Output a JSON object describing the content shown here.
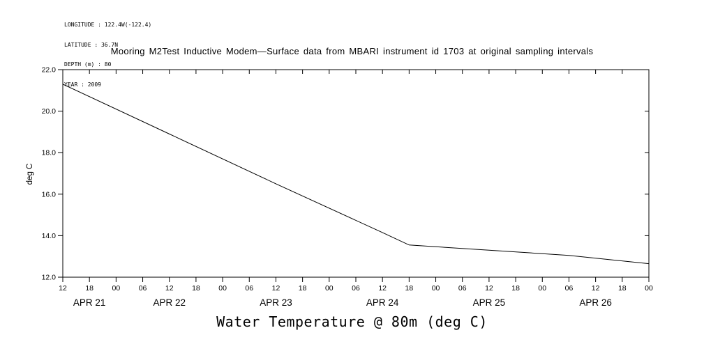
{
  "meta": {
    "lines": [
      "LONGITUDE : 122.4W(-122.4)",
      "LATITUDE : 36.7N",
      "DEPTH (m) : 80",
      "YEAR : 2009"
    ]
  },
  "chart_data": {
    "type": "line",
    "title": "Mooring M2Test Inductive Modem—Surface data from MBARI instrument id 1703 at original sampling intervals",
    "bottom_title": "Water Temperature @ 80m (deg C)",
    "ylabel": "deg C",
    "xlabel": "",
    "ylim": [
      12.0,
      22.0
    ],
    "y_ticks": [
      12.0,
      14.0,
      16.0,
      18.0,
      20.0,
      22.0
    ],
    "y_tick_labels": [
      "12.0",
      "14.0",
      "16.0",
      "18.0",
      "20.0",
      "22.0"
    ],
    "x_hours_range": [
      0,
      132
    ],
    "x_tick_interval_hours": 6,
    "x_tick_labels": [
      "12",
      "18",
      "00",
      "06",
      "12",
      "18",
      "00",
      "06",
      "12",
      "18",
      "00",
      "06",
      "12",
      "18",
      "00",
      "06",
      "12",
      "18",
      "00",
      "06",
      "12",
      "18",
      "00"
    ],
    "date_labels": [
      {
        "label": "APR 21",
        "center_hour": 6
      },
      {
        "label": "APR 22",
        "center_hour": 24
      },
      {
        "label": "APR 23",
        "center_hour": 48
      },
      {
        "label": "APR 24",
        "center_hour": 72
      },
      {
        "label": "APR 25",
        "center_hour": 96
      },
      {
        "label": "APR 26",
        "center_hour": 120
      }
    ],
    "grid": false,
    "legend": "none",
    "line_color": "#000000",
    "background": "#ffffff",
    "series": [
      {
        "name": "water_temperature_80m_degC",
        "points": [
          {
            "hour": 0,
            "temp": 21.3
          },
          {
            "hour": 24,
            "temp": 18.9
          },
          {
            "hour": 48,
            "temp": 16.5
          },
          {
            "hour": 72,
            "temp": 14.15
          },
          {
            "hour": 78,
            "temp": 13.55
          },
          {
            "hour": 96,
            "temp": 13.3
          },
          {
            "hour": 114,
            "temp": 13.05
          },
          {
            "hour": 132,
            "temp": 12.65
          }
        ]
      }
    ]
  }
}
